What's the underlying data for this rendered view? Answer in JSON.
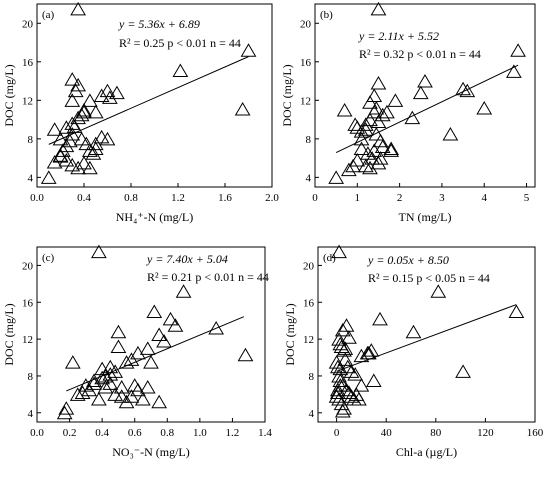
{
  "chart_data": [
    {
      "type": "scatter",
      "label": "(a)",
      "xlabel": "NH₄⁺-N (mg/L)",
      "ylabel": "DOC (mg/L)",
      "xlim": [
        0.0,
        2.0
      ],
      "ylim": [
        3,
        22
      ],
      "xticks": [
        0.0,
        0.4,
        0.8,
        1.2,
        1.6,
        2.0
      ],
      "xticklabels": [
        "0.0",
        "0.4",
        "0.8",
        "1.2",
        "1.6",
        "2.0"
      ],
      "yticks": [
        4,
        8,
        12,
        16,
        20
      ],
      "yticklabels": [
        "4",
        "8",
        "12",
        "16",
        "20"
      ],
      "equation": "y = 5.36x + 6.89",
      "stats": "R² = 0.25 p < 0.01 n = 44",
      "fit": {
        "slope": 5.36,
        "intercept": 6.89,
        "x_range": [
          0.1,
          1.8
        ]
      },
      "x": [
        0.35,
        1.8,
        1.22,
        1.75,
        0.15,
        0.2,
        0.25,
        0.3,
        0.3,
        0.35,
        0.4,
        0.45,
        0.5,
        0.55,
        0.6,
        0.62,
        0.68,
        0.1,
        0.15,
        0.2,
        0.22,
        0.25,
        0.28,
        0.3,
        0.32,
        0.35,
        0.38,
        0.4,
        0.42,
        0.45,
        0.48,
        0.5,
        0.55,
        0.6,
        0.2,
        0.25,
        0.3,
        0.35,
        0.4,
        0.45,
        0.5,
        0.3,
        0.33,
        0.38
      ],
      "y": [
        21.5,
        17.2,
        15.1,
        11.1,
        9.0,
        8.0,
        9.2,
        9.6,
        14.2,
        13.6,
        11.0,
        12.0,
        10.8,
        12.5,
        13.0,
        12.3,
        12.8,
        4.0,
        5.6,
        6.2,
        6.8,
        7.3,
        7.8,
        8.5,
        9.3,
        10.2,
        10.5,
        10.8,
        7.5,
        6.8,
        6.5,
        7.5,
        8.2,
        8.0,
        6.3,
        5.8,
        5.3,
        5.0,
        5.5,
        5.0,
        7.0,
        12.0,
        13.0,
        8.0
      ]
    },
    {
      "type": "scatter",
      "label": "(b)",
      "xlabel": "TN (mg/L)",
      "ylabel": "DOC (mg/L)",
      "xlim": [
        0,
        5.2
      ],
      "ylim": [
        3,
        22
      ],
      "xticks": [
        0,
        1,
        2,
        3,
        4,
        5
      ],
      "xticklabels": [
        "0",
        "1",
        "2",
        "3",
        "4",
        "5"
      ],
      "yticks": [
        4,
        8,
        12,
        16,
        20
      ],
      "yticklabels": [
        "4",
        "8",
        "12",
        "16",
        "20"
      ],
      "equation": "y = 2.11x + 5.52",
      "stats": "R² = 0.32 p < 0.01 n = 44",
      "fit": {
        "slope": 2.11,
        "intercept": 5.52,
        "x_range": [
          0.5,
          4.8
        ]
      },
      "x": [
        1.5,
        4.8,
        4.7,
        3.6,
        3.5,
        4.0,
        3.2,
        2.6,
        2.5,
        2.3,
        1.9,
        1.8,
        1.7,
        1.5,
        1.4,
        1.3,
        1.2,
        1.1,
        1.0,
        0.9,
        0.8,
        0.5,
        0.7,
        1.3,
        1.4,
        1.6,
        1.2,
        1.1,
        1.35,
        1.45,
        1.55,
        1.25,
        1.5,
        1.3,
        1.4,
        1.6,
        1.8,
        1.5,
        1.0,
        0.95,
        1.1,
        1.2,
        1.45,
        1.55
      ],
      "y": [
        21.5,
        17.2,
        15.0,
        13.0,
        13.2,
        11.2,
        8.5,
        14.0,
        12.8,
        10.2,
        12.0,
        7.0,
        10.8,
        13.8,
        12.5,
        11.8,
        9.5,
        8.8,
        9.2,
        5.2,
        4.8,
        4.0,
        11.0,
        10.0,
        10.8,
        10.5,
        9.0,
        7.0,
        6.0,
        8.5,
        7.8,
        6.5,
        5.5,
        5.0,
        6.8,
        7.2,
        6.8,
        9.8,
        5.8,
        9.5,
        8.0,
        5.2,
        11.2,
        6.0
      ]
    },
    {
      "type": "scatter",
      "label": "(c)",
      "xlabel": "NO₃⁻-N (mg/L)",
      "ylabel": "DOC (mg/L)",
      "xlim": [
        0.0,
        1.4
      ],
      "ylim": [
        3,
        22
      ],
      "xticks": [
        0.0,
        0.2,
        0.4,
        0.6,
        0.8,
        1.0,
        1.2,
        1.4
      ],
      "xticklabels": [
        "0.0",
        "0.2",
        "0.4",
        "0.6",
        "0.8",
        "1.0",
        "1.2",
        "1.4"
      ],
      "yticks": [
        4,
        8,
        12,
        16,
        20
      ],
      "yticklabels": [
        "4",
        "8",
        "12",
        "16",
        "20"
      ],
      "equation": "y = 7.40x + 5.04",
      "stats": "R² = 0.21 p < 0.01 n = 44",
      "fit": {
        "slope": 7.4,
        "intercept": 5.04,
        "x_range": [
          0.18,
          1.27
        ]
      },
      "x": [
        0.38,
        0.9,
        0.72,
        0.82,
        0.85,
        1.1,
        1.28,
        0.75,
        0.78,
        0.68,
        0.62,
        0.58,
        0.55,
        0.5,
        0.5,
        0.48,
        0.45,
        0.42,
        0.4,
        0.35,
        0.3,
        0.25,
        0.22,
        0.18,
        0.17,
        0.28,
        0.32,
        0.38,
        0.42,
        0.45,
        0.48,
        0.52,
        0.55,
        0.58,
        0.6,
        0.62,
        0.65,
        0.68,
        0.7,
        0.75,
        0.52,
        0.4,
        0.35,
        0.45
      ],
      "y": [
        21.5,
        17.2,
        15.0,
        14.2,
        13.5,
        13.2,
        10.3,
        12.5,
        11.8,
        11.0,
        10.5,
        9.8,
        9.5,
        12.8,
        11.2,
        8.5,
        9.0,
        8.0,
        8.8,
        7.5,
        7.0,
        6.0,
        9.5,
        4.5,
        4.0,
        6.2,
        6.5,
        5.5,
        6.8,
        7.2,
        6.0,
        6.8,
        5.2,
        5.8,
        7.0,
        6.5,
        5.5,
        6.8,
        9.5,
        5.2,
        5.8,
        7.8,
        7.2,
        8.2
      ]
    },
    {
      "type": "scatter",
      "label": "(d)",
      "xlabel": "Chl-a (µg/L)",
      "ylabel": "DOC (mg/L)",
      "xlim": [
        -15,
        160
      ],
      "ylim": [
        3,
        22
      ],
      "xticks": [
        0,
        40,
        80,
        120,
        160
      ],
      "xticklabels": [
        "0",
        "40",
        "80",
        "120",
        "160"
      ],
      "yticks": [
        4,
        8,
        12,
        16,
        20
      ],
      "yticklabels": [
        "4",
        "8",
        "12",
        "16",
        "20"
      ],
      "equation": "y = 0.05x + 8.50",
      "stats": "R² = 0.15 p < 0.05 n = 44",
      "fit": {
        "slope": 0.05,
        "intercept": 8.5,
        "x_range": [
          0,
          145
        ]
      },
      "x": [
        2,
        82,
        62,
        145,
        102,
        35,
        26,
        28,
        30,
        8,
        10,
        5,
        2,
        3,
        4,
        6,
        7,
        9,
        12,
        15,
        18,
        20,
        0,
        1,
        2,
        3,
        5,
        8,
        10,
        12,
        14,
        16,
        1,
        2,
        4,
        6,
        0,
        1,
        3,
        5,
        20,
        25,
        3,
        7
      ],
      "y": [
        21.5,
        17.2,
        12.8,
        15.0,
        8.5,
        14.2,
        10.5,
        10.8,
        7.5,
        13.5,
        12.2,
        13.0,
        12.0,
        11.5,
        11.2,
        10.8,
        9.8,
        9.0,
        8.5,
        8.2,
        5.5,
        7.0,
        9.5,
        9.0,
        8.0,
        7.5,
        7.0,
        6.5,
        6.2,
        5.8,
        5.5,
        6.0,
        6.5,
        5.5,
        5.0,
        4.5,
        5.8,
        6.2,
        7.0,
        4.2,
        10.2,
        10.5,
        8.8,
        11.0
      ]
    }
  ]
}
